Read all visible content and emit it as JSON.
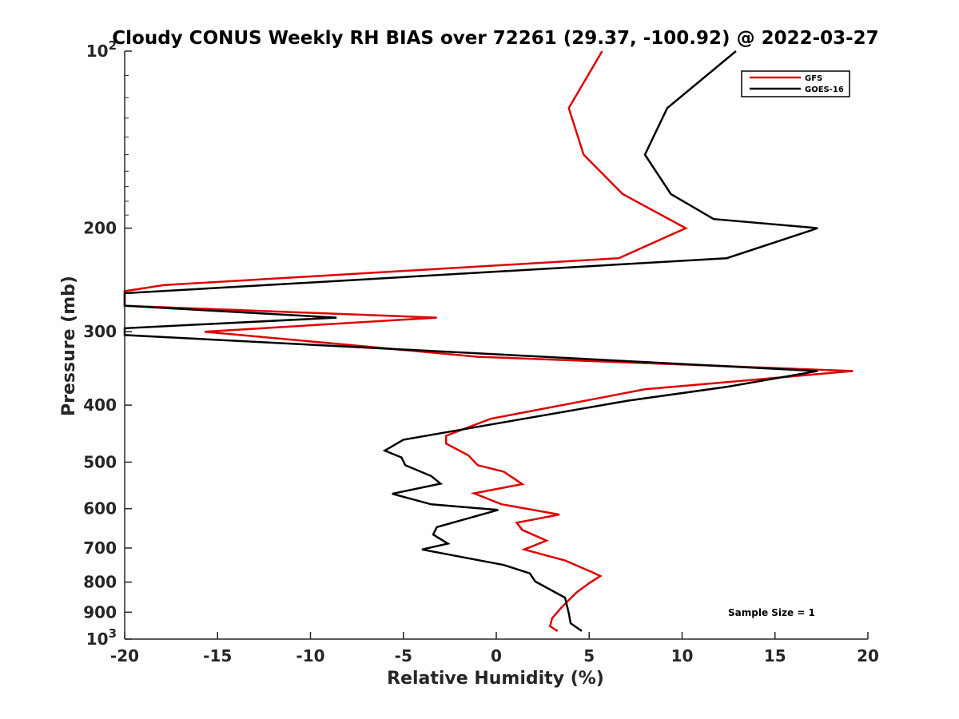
{
  "chart_data": {
    "type": "line",
    "title": "Cloudy CONUS Weekly RH BIAS over 72261 (29.37, -100.92) @ 2022-03-27",
    "xlabel": "Relative Humidity (%)",
    "ylabel": "Pressure (mb)",
    "xlim": [
      -20,
      20
    ],
    "ylim": [
      100,
      1000
    ],
    "y_scale": "log",
    "y_reversed": true,
    "grid": false,
    "legend_position": "top-right",
    "x_ticks": [
      "-20",
      "-15",
      "-10",
      "-5",
      "0",
      "5",
      "10",
      "15",
      "20"
    ],
    "y_ticks": [
      {
        "value": 100,
        "base": "10",
        "exp": "2"
      },
      {
        "value": 200,
        "label": "200"
      },
      {
        "value": 300,
        "label": "300"
      },
      {
        "value": 400,
        "label": "400"
      },
      {
        "value": 500,
        "label": "500"
      },
      {
        "value": 600,
        "label": "600"
      },
      {
        "value": 700,
        "label": "700"
      },
      {
        "value": 800,
        "label": "800"
      },
      {
        "value": 900,
        "label": "900"
      },
      {
        "value": 1000,
        "base": "10",
        "exp": "3"
      }
    ],
    "series": [
      {
        "name": "GFS",
        "color": "#e00000",
        "points": [
          [
            5.7,
            100
          ],
          [
            3.9,
            125
          ],
          [
            4.7,
            150
          ],
          [
            6.8,
            175
          ],
          [
            10.2,
            200
          ],
          [
            6.6,
            225
          ],
          [
            -17.9,
            250
          ],
          [
            -20,
            256
          ],
          [
            -20,
            271
          ],
          [
            -3.2,
            284
          ],
          [
            -15.7,
            300
          ],
          [
            -1,
            331
          ],
          [
            19.2,
            350
          ],
          [
            8,
            376
          ],
          [
            -0.3,
            422
          ],
          [
            -2.7,
            451
          ],
          [
            -2.7,
            465
          ],
          [
            -1.5,
            487
          ],
          [
            -1,
            506
          ],
          [
            0.4,
            519
          ],
          [
            1.4,
            545
          ],
          [
            -1.2,
            565
          ],
          [
            0.3,
            590
          ],
          [
            3.4,
            614
          ],
          [
            1.1,
            634
          ],
          [
            1.4,
            652
          ],
          [
            2.7,
            680
          ],
          [
            1.5,
            704
          ],
          [
            3.7,
            735
          ],
          [
            5.1,
            768
          ],
          [
            5.6,
            781
          ],
          [
            5,
            803
          ],
          [
            4.3,
            834
          ],
          [
            3.5,
            884
          ],
          [
            3,
            922
          ],
          [
            2.9,
            951
          ],
          [
            3.3,
            969
          ]
        ]
      },
      {
        "name": "GOES-16",
        "color": "#000000",
        "points": [
          [
            12.9,
            100
          ],
          [
            9.2,
            125
          ],
          [
            8,
            150
          ],
          [
            9.4,
            175
          ],
          [
            11.7,
            193
          ],
          [
            17.3,
            200
          ],
          [
            12.4,
            225
          ],
          [
            -12.4,
            250
          ],
          [
            -20,
            258
          ],
          [
            -20,
            271
          ],
          [
            -8.6,
            284
          ],
          [
            -20,
            296
          ],
          [
            -20,
            304
          ],
          [
            17.3,
            350
          ],
          [
            12.5,
            372
          ],
          [
            7.1,
            393
          ],
          [
            0,
            430
          ],
          [
            -5,
            458
          ],
          [
            -6,
            478
          ],
          [
            -5.1,
            491
          ],
          [
            -4.9,
            506
          ],
          [
            -3.5,
            528
          ],
          [
            -3,
            544
          ],
          [
            -5.6,
            566
          ],
          [
            -3.5,
            590
          ],
          [
            0.1,
            603
          ],
          [
            -3.2,
            645
          ],
          [
            -3.4,
            664
          ],
          [
            -2.6,
            688
          ],
          [
            -4,
            704
          ],
          [
            0.4,
            748
          ],
          [
            1.8,
            773
          ],
          [
            2.1,
            798
          ],
          [
            3.7,
            850
          ],
          [
            3.9,
            903
          ],
          [
            4,
            940
          ],
          [
            4.6,
            969
          ]
        ]
      }
    ],
    "annotations": [
      "Sample Size = 1"
    ]
  }
}
